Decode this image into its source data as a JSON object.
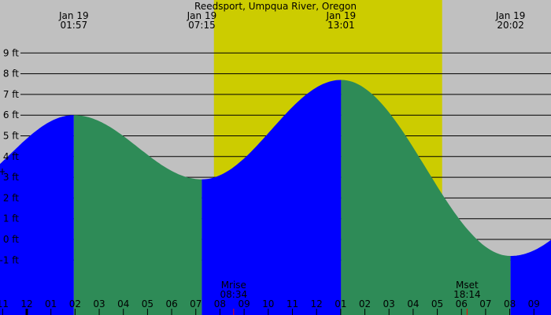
{
  "chart_data": {
    "type": "area",
    "title": "Reedsport, Umpqua River, Oregon",
    "y_unit": "ft",
    "ylim": [
      -1.7,
      10
    ],
    "y_ticks": [
      9,
      8,
      7,
      6,
      5,
      4,
      3,
      2,
      1,
      0,
      -1
    ],
    "y_tick_labels": [
      "9 ft",
      "8 ft",
      "7 ft",
      "6 ft",
      "5 ft",
      "4 ft",
      "3 ft",
      "2 ft",
      "1 ft",
      "0 ft",
      "-1 ft"
    ],
    "x_tick_labels": [
      "11",
      "12",
      "01",
      "02",
      "03",
      "04",
      "05",
      "06",
      "07",
      "08",
      "09",
      "10",
      "11",
      "12",
      "01",
      "02",
      "03",
      "04",
      "05",
      "06",
      "07",
      "08",
      "09"
    ],
    "extremes": [
      {
        "date": "Jan 19",
        "time": "01:57",
        "type": "high",
        "height_ft": 6.0
      },
      {
        "date": "Jan 19",
        "time": "07:15",
        "type": "low",
        "height_ft": 2.9
      },
      {
        "date": "Jan 19",
        "time": "13:01",
        "type": "high",
        "height_ft": 7.7
      },
      {
        "date": "Jan 19",
        "time": "20:02",
        "type": "low",
        "height_ft": -0.8
      }
    ],
    "daylight": {
      "start": "07:45",
      "end": "17:12"
    },
    "moon_events": [
      {
        "label": "Mrise",
        "time": "08:34"
      },
      {
        "label": "Mset",
        "time": "18:14"
      }
    ],
    "colors": {
      "night": "#c0c0c0",
      "day": "#cccc00",
      "rising": "#0000ff",
      "falling": "#2e8b57",
      "moon_tick": "#ff0000"
    }
  }
}
